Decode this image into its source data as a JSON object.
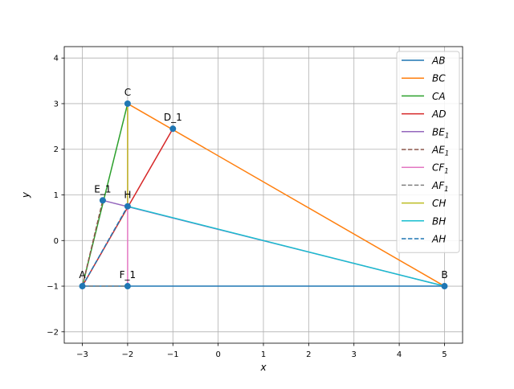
{
  "chart_data": {
    "type": "line",
    "title": "",
    "xlabel": "x",
    "ylabel": "y",
    "xlim": [
      -3.4,
      5.4
    ],
    "ylim": [
      -2.25,
      4.25
    ],
    "x_ticks": [
      -3,
      -2,
      -1,
      0,
      1,
      2,
      3,
      4,
      5
    ],
    "y_ticks": [
      -2,
      -1,
      0,
      1,
      2,
      3,
      4
    ],
    "x_tick_labels": [
      "−3",
      "−2",
      "−1",
      "0",
      "1",
      "2",
      "3",
      "4",
      "5"
    ],
    "y_tick_labels": [
      "−2",
      "−1",
      "0",
      "1",
      "2",
      "3",
      "4"
    ],
    "grid": true,
    "legend_position": "top-right",
    "points": [
      {
        "label": "A",
        "x": -3,
        "y": -1
      },
      {
        "label": "B",
        "x": 5,
        "y": -1
      },
      {
        "label": "C",
        "x": -2,
        "y": 3
      },
      {
        "label": "D_1",
        "x": -1,
        "y": 2.45
      },
      {
        "label": "E_1",
        "x": -2.55,
        "y": 0.88
      },
      {
        "label": "F_1",
        "x": -2,
        "y": -1
      },
      {
        "label": "H",
        "x": -2,
        "y": 0.75
      }
    ],
    "point_color": "#1f77b4",
    "series": [
      {
        "name": "AB",
        "sub": "",
        "color": "#1f77b4",
        "dashed": false,
        "x": [
          -3,
          5
        ],
        "y": [
          -1,
          -1
        ]
      },
      {
        "name": "BC",
        "sub": "",
        "color": "#ff7f0e",
        "dashed": false,
        "x": [
          5,
          -2
        ],
        "y": [
          -1,
          3
        ]
      },
      {
        "name": "CA",
        "sub": "",
        "color": "#2ca02c",
        "dashed": false,
        "x": [
          -2,
          -3
        ],
        "y": [
          3,
          -1
        ]
      },
      {
        "name": "AD",
        "sub": "",
        "color": "#d62728",
        "dashed": false,
        "x": [
          -3,
          -1
        ],
        "y": [
          -1,
          2.45
        ]
      },
      {
        "name": "BE",
        "sub": "1",
        "color": "#9467bd",
        "dashed": false,
        "x": [
          5,
          -2.55
        ],
        "y": [
          -1,
          0.88
        ]
      },
      {
        "name": "AE",
        "sub": "1",
        "color": "#8c564b",
        "dashed": true,
        "x": [
          -3,
          -2.55
        ],
        "y": [
          -1,
          0.88
        ]
      },
      {
        "name": "CF",
        "sub": "1",
        "color": "#e377c2",
        "dashed": false,
        "x": [
          -2,
          -2
        ],
        "y": [
          3,
          -1
        ]
      },
      {
        "name": "AF",
        "sub": "1",
        "color": "#7f7f7f",
        "dashed": true,
        "x": [
          -3,
          -2
        ],
        "y": [
          -1,
          -1
        ]
      },
      {
        "name": "CH",
        "sub": "",
        "color": "#bcbd22",
        "dashed": false,
        "x": [
          -2,
          -2
        ],
        "y": [
          3,
          0.75
        ]
      },
      {
        "name": "BH",
        "sub": "",
        "color": "#17becf",
        "dashed": false,
        "x": [
          5,
          -2
        ],
        "y": [
          -1,
          0.75
        ]
      },
      {
        "name": "AH",
        "sub": "",
        "color": "#1f77b4",
        "dashed": true,
        "x": [
          -3,
          -2
        ],
        "y": [
          -1,
          0.75
        ]
      }
    ]
  }
}
